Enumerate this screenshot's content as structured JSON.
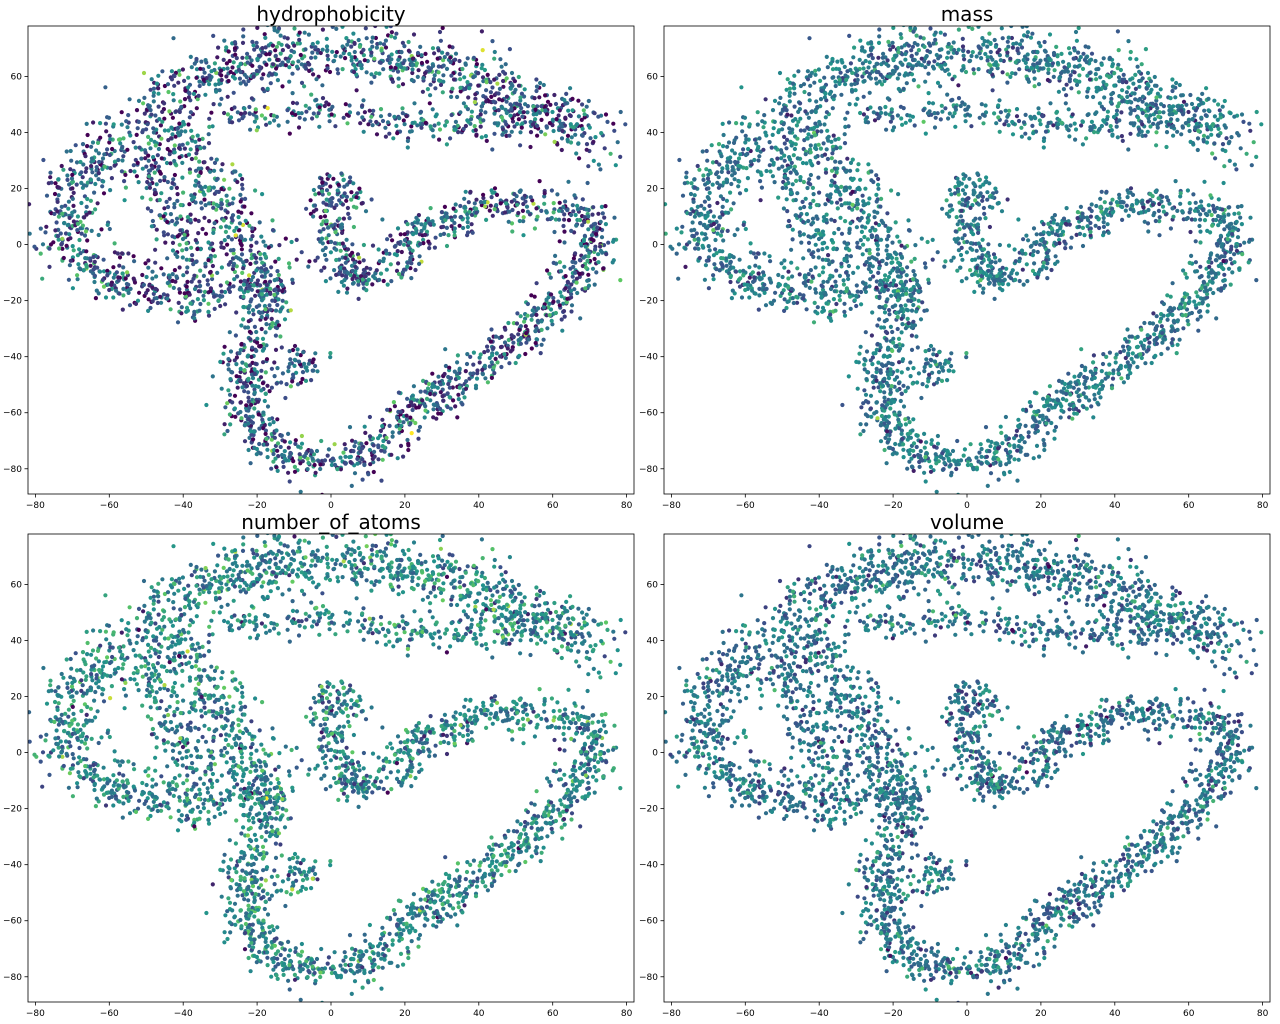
{
  "figure": {
    "colormap": [
      "#440154",
      "#3b528b",
      "#21918c",
      "#5ec962",
      "#fde725"
    ]
  },
  "chart_data": [
    {
      "type": "scatter",
      "title": "hydrophobicity",
      "xlabel": "",
      "ylabel": "",
      "xlim": [
        -82,
        82
      ],
      "ylim": [
        -89,
        78
      ],
      "xticks": [
        -80,
        -60,
        -40,
        -20,
        0,
        20,
        40,
        60,
        80
      ],
      "yticks": [
        -80,
        -60,
        -40,
        -20,
        0,
        20,
        40,
        60
      ],
      "grid": false,
      "color_value_range": [
        0,
        1
      ],
      "color_mean": 0.3,
      "color_spread": 0.22,
      "point_count_approx": 4000,
      "description_of_points": "t-SNE embedding; points colored by property value"
    },
    {
      "type": "scatter",
      "title": "mass",
      "xlabel": "",
      "ylabel": "",
      "xlim": [
        -82,
        82
      ],
      "ylim": [
        -89,
        78
      ],
      "xticks": [
        -80,
        -60,
        -40,
        -20,
        0,
        20,
        40,
        60,
        80
      ],
      "yticks": [
        -80,
        -60,
        -40,
        -20,
        0,
        20,
        40,
        60
      ],
      "grid": false,
      "color_value_range": [
        0,
        1
      ],
      "color_mean": 0.4,
      "color_spread": 0.12,
      "point_count_approx": 4000,
      "description_of_points": "t-SNE embedding; points colored by property value"
    },
    {
      "type": "scatter",
      "title": "number_of_atoms",
      "xlabel": "",
      "ylabel": "",
      "xlim": [
        -82,
        82
      ],
      "ylim": [
        -89,
        78
      ],
      "xticks": [
        -80,
        -60,
        -40,
        -20,
        0,
        20,
        40,
        60,
        80
      ],
      "yticks": [
        -80,
        -60,
        -40,
        -20,
        0,
        20,
        40,
        60
      ],
      "grid": false,
      "color_value_range": [
        0,
        1
      ],
      "color_mean": 0.45,
      "color_spread": 0.15,
      "point_count_approx": 4000,
      "description_of_points": "t-SNE embedding; points colored by property value"
    },
    {
      "type": "scatter",
      "title": "volume",
      "xlabel": "",
      "ylabel": "",
      "xlim": [
        -82,
        82
      ],
      "ylim": [
        -89,
        78
      ],
      "xticks": [
        -80,
        -60,
        -40,
        -20,
        0,
        20,
        40,
        60,
        80
      ],
      "yticks": [
        -80,
        -60,
        -40,
        -20,
        0,
        20,
        40,
        60
      ],
      "grid": false,
      "color_value_range": [
        0,
        1
      ],
      "color_mean": 0.38,
      "color_spread": 0.12,
      "point_count_approx": 4000,
      "description_of_points": "t-SNE embedding; points colored by property value"
    }
  ],
  "embedding_shape": {
    "top_arc": [
      [
        -48,
        50
      ],
      [
        -38,
        58
      ],
      [
        -25,
        65
      ],
      [
        -10,
        68
      ],
      [
        5,
        68
      ],
      [
        20,
        66
      ],
      [
        35,
        60
      ],
      [
        50,
        52
      ],
      [
        62,
        44
      ],
      [
        72,
        37
      ]
    ],
    "top_arc_inner": [
      [
        -30,
        45
      ],
      [
        -15,
        46
      ],
      [
        0,
        48
      ],
      [
        15,
        44
      ],
      [
        30,
        42
      ],
      [
        45,
        44
      ],
      [
        58,
        40
      ]
    ],
    "left_loop": [
      [
        -42,
        40
      ],
      [
        -56,
        38
      ],
      [
        -66,
        28
      ],
      [
        -72,
        14
      ],
      [
        -70,
        0
      ],
      [
        -64,
        -10
      ],
      [
        -50,
        -15
      ],
      [
        -35,
        -18
      ],
      [
        -25,
        -15
      ],
      [
        -20,
        -10
      ],
      [
        -23,
        0
      ],
      [
        -30,
        15
      ],
      [
        -36,
        28
      ],
      [
        -42,
        40
      ]
    ],
    "left_band": [
      [
        -50,
        30
      ],
      [
        -45,
        15
      ],
      [
        -40,
        0
      ],
      [
        -33,
        -10
      ]
    ],
    "neck": [
      [
        -20,
        -10
      ],
      [
        -16,
        -18
      ],
      [
        -18,
        -28
      ],
      [
        -22,
        -38
      ]
    ],
    "bottom_loop": [
      [
        -22,
        -38
      ],
      [
        -24,
        -50
      ],
      [
        -22,
        -62
      ],
      [
        -16,
        -72
      ],
      [
        -6,
        -78
      ],
      [
        4,
        -78
      ],
      [
        12,
        -72
      ],
      [
        20,
        -62
      ],
      [
        30,
        -52
      ],
      [
        40,
        -44
      ],
      [
        50,
        -34
      ],
      [
        58,
        -24
      ],
      [
        64,
        -14
      ],
      [
        70,
        -4
      ],
      [
        72,
        4
      ],
      [
        66,
        12
      ],
      [
        56,
        14
      ],
      [
        44,
        14
      ],
      [
        34,
        10
      ],
      [
        24,
        4
      ],
      [
        16,
        -6
      ],
      [
        10,
        -12
      ],
      [
        4,
        -10
      ],
      [
        0,
        -2
      ],
      [
        0,
        8
      ],
      [
        -1,
        16
      ],
      [
        0,
        20
      ],
      [
        5,
        20
      ],
      [
        6,
        15
      ]
    ],
    "inner_cluster": [
      [
        -10,
        -35
      ],
      [
        -8,
        -40
      ],
      [
        -5,
        -45
      ],
      [
        -15,
        -50
      ]
    ]
  }
}
